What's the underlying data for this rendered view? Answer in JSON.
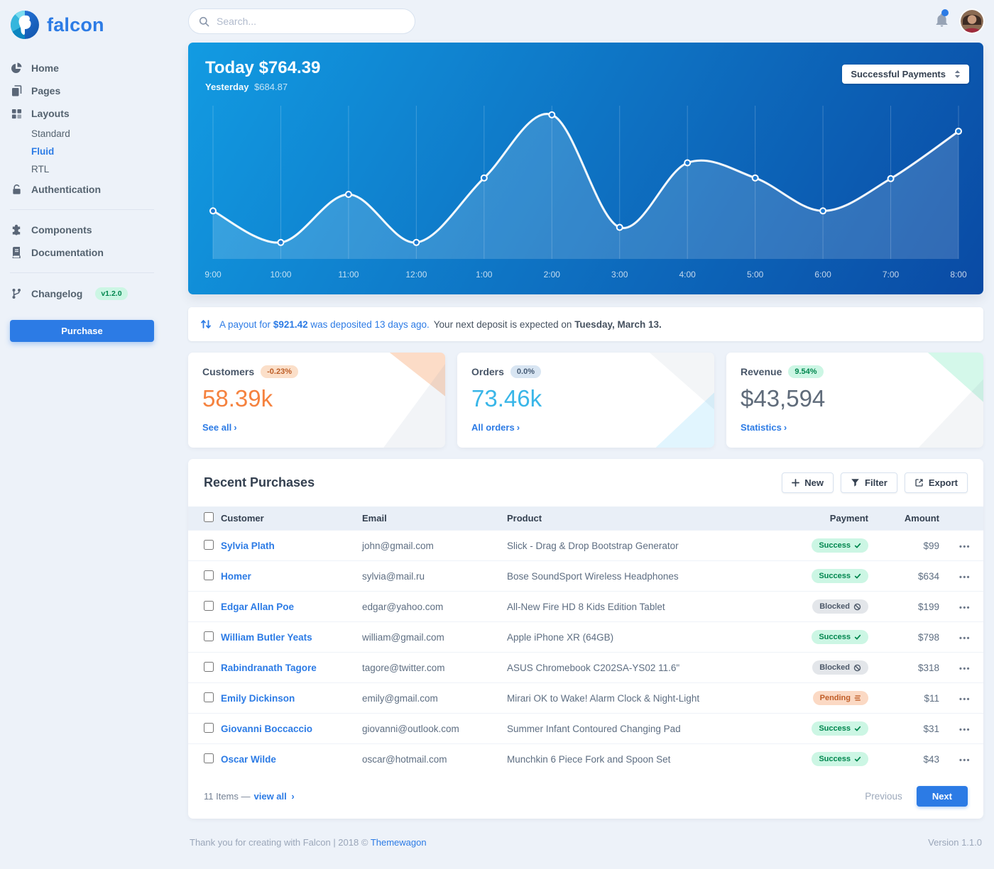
{
  "brand": {
    "name": "falcon"
  },
  "topbar": {
    "search_placeholder": "Search..."
  },
  "sidebar": {
    "items": [
      {
        "label": "Home",
        "icon": "chart-pie-icon"
      },
      {
        "label": "Pages",
        "icon": "pages-icon"
      },
      {
        "label": "Layouts",
        "icon": "layout-grid-icon",
        "children": [
          {
            "label": "Standard"
          },
          {
            "label": "Fluid",
            "active": true
          },
          {
            "label": "RTL"
          }
        ]
      },
      {
        "label": "Authentication",
        "icon": "unlock-icon"
      },
      {
        "label": "Components",
        "icon": "puzzle-icon"
      },
      {
        "label": "Documentation",
        "icon": "book-icon"
      },
      {
        "label": "Changelog",
        "icon": "code-branch-icon",
        "badge": "v1.2.0"
      }
    ],
    "purchase_label": "Purchase"
  },
  "chart_card": {
    "title": "Today $764.39",
    "yesterday_label": "Yesterday",
    "yesterday_value": "$684.87",
    "select_value": "Successful Payments"
  },
  "chart_data": {
    "type": "area",
    "title": "Today $764.39",
    "x": [
      "9:00",
      "10:00",
      "11:00",
      "12:00",
      "1:00",
      "2:00",
      "3:00",
      "4:00",
      "5:00",
      "6:00",
      "7:00",
      "8:00"
    ],
    "series": [
      {
        "name": "Successful Payments",
        "values": [
          70,
          24,
          94,
          24,
          118,
          210,
          46,
          140,
          118,
          70,
          117,
          186
        ]
      }
    ],
    "ylim": [
      0,
      215
    ],
    "grid": "vertical-only",
    "legend": "none",
    "line_color": "#ffffff",
    "fill_color": "rgba(255,255,255,0.16)"
  },
  "payout_notice": {
    "part1": "A payout for",
    "amount": "$921.42",
    "part2": "was deposited 13 days ago.",
    "part3": "Your next deposit is expected on",
    "date": "Tuesday, March 13."
  },
  "stats": [
    {
      "title": "Customers",
      "badge": "-0.23%",
      "value": "58.39k",
      "link": "See all",
      "tone": "warning"
    },
    {
      "title": "Orders",
      "badge": "0.0%",
      "value": "73.46k",
      "link": "All orders",
      "tone": "info"
    },
    {
      "title": "Revenue",
      "badge": "9.54%",
      "value": "$43,594",
      "link": "Statistics",
      "tone": "success"
    }
  ],
  "purchases": {
    "title": "Recent Purchases",
    "buttons": {
      "new": "New",
      "filter": "Filter",
      "export": "Export"
    },
    "columns": [
      "Customer",
      "Email",
      "Product",
      "Payment",
      "Amount"
    ],
    "rows": [
      {
        "customer": "Sylvia Plath",
        "email": "john@gmail.com",
        "product": "Slick - Drag & Drop Bootstrap Generator",
        "status": "Success",
        "amount": "$99"
      },
      {
        "customer": "Homer",
        "email": "sylvia@mail.ru",
        "product": "Bose SoundSport Wireless Headphones",
        "status": "Success",
        "amount": "$634"
      },
      {
        "customer": "Edgar Allan Poe",
        "email": "edgar@yahoo.com",
        "product": "All-New Fire HD 8 Kids Edition Tablet",
        "status": "Blocked",
        "amount": "$199"
      },
      {
        "customer": "William Butler Yeats",
        "email": "william@gmail.com",
        "product": "Apple iPhone XR (64GB)",
        "status": "Success",
        "amount": "$798"
      },
      {
        "customer": "Rabindranath Tagore",
        "email": "tagore@twitter.com",
        "product": "ASUS Chromebook C202SA-YS02 11.6\"",
        "status": "Blocked",
        "amount": "$318"
      },
      {
        "customer": "Emily Dickinson",
        "email": "emily@gmail.com",
        "product": "Mirari OK to Wake! Alarm Clock & Night-Light",
        "status": "Pending",
        "amount": "$11"
      },
      {
        "customer": "Giovanni Boccaccio",
        "email": "giovanni@outlook.com",
        "product": "Summer Infant Contoured Changing Pad",
        "status": "Success",
        "amount": "$31"
      },
      {
        "customer": "Oscar Wilde",
        "email": "oscar@hotmail.com",
        "product": "Munchkin 6 Piece Fork and Spoon Set",
        "status": "Success",
        "amount": "$43"
      }
    ],
    "footer": {
      "items_label": "11 Items —",
      "view_all": "view all",
      "previous": "Previous",
      "next": "Next"
    }
  },
  "page_footer": {
    "text": "Thank you for creating with Falcon | 2018 ©",
    "link": "Themewagon",
    "version": "Version 1.1.0"
  }
}
